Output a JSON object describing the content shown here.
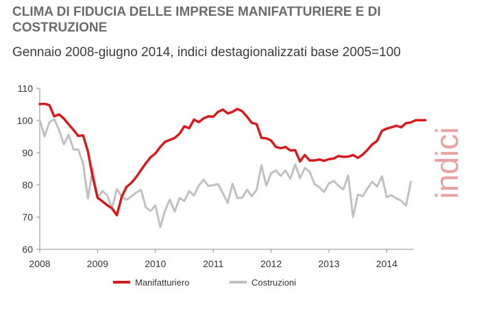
{
  "title": "CLIMA DI FIDUCIA DELLE IMPRESE MANIFATTURIERE E DI COSTRUZIONE",
  "subtitle": "Gennaio 2008-giugno 2014, indici destagionalizzati base 2005=100",
  "side_label": "indici",
  "colors": {
    "manifatturiero": "#d7191c",
    "costruzioni": "#c0c0c0",
    "axis": "#8c8c8c",
    "side_label": "#e8a0a0"
  },
  "chart_data": {
    "type": "line",
    "title": "CLIMA DI FIDUCIA DELLE IMPRESE MANIFATTURIERE E DI COSTRUZIONE",
    "subtitle": "Gennaio 2008-giugno 2014, indici destagionalizzati base 2005=100",
    "ylabel": "indici",
    "xlabel": "",
    "ylim": [
      60,
      110
    ],
    "yticks": [
      60,
      70,
      80,
      90,
      100,
      110
    ],
    "xticks": [
      "2008",
      "2009",
      "2010",
      "2011",
      "2012",
      "2013",
      "2014"
    ],
    "x_start": "2008-01",
    "frequency": "monthly",
    "legend_position": "bottom",
    "grid": false,
    "series": [
      {
        "name": "Manifatturiero",
        "values": [
          105.1,
          105.2,
          104.8,
          101.3,
          101.9,
          100.6,
          98.8,
          97.1,
          95.2,
          95.4,
          90.4,
          82.4,
          76.0,
          74.9,
          73.7,
          72.7,
          70.6,
          76.3,
          79.4,
          80.6,
          82.4,
          84.6,
          86.7,
          88.6,
          89.8,
          91.8,
          93.4,
          94.0,
          94.6,
          95.9,
          98.2,
          97.6,
          100.3,
          99.5,
          100.7,
          101.3,
          101.2,
          102.7,
          103.4,
          102.2,
          102.7,
          103.6,
          102.9,
          101.2,
          99.3,
          98.9,
          94.6,
          94.5,
          93.8,
          91.8,
          91.4,
          91.8,
          90.7,
          90.8,
          87.3,
          89.3,
          87.6,
          87.6,
          87.9,
          87.5,
          88.0,
          88.2,
          89.0,
          88.7,
          88.8,
          89.3,
          88.4,
          89.4,
          90.9,
          92.6,
          93.7,
          96.8,
          97.5,
          97.9,
          98.4,
          97.9,
          99.2,
          99.4,
          100.1,
          100.1,
          100.1
        ]
      },
      {
        "name": "Costruzioni",
        "values": [
          100.2,
          95.1,
          99.5,
          100.4,
          97.1,
          92.6,
          95.6,
          91.0,
          91.0,
          86.6,
          75.8,
          85.2,
          75.9,
          78.1,
          76.8,
          72.7,
          78.7,
          76.4,
          75.4,
          76.4,
          77.6,
          78.5,
          73.1,
          71.9,
          73.6,
          66.9,
          72.0,
          75.5,
          71.7,
          75.9,
          75.0,
          78.1,
          76.7,
          79.8,
          81.6,
          79.7,
          79.9,
          80.3,
          77.4,
          74.4,
          80.4,
          75.9,
          76.0,
          78.5,
          76.5,
          78.5,
          86.1,
          79.8,
          83.6,
          84.5,
          82.8,
          84.5,
          81.9,
          86.4,
          82.1,
          85.3,
          84.1,
          80.3,
          79.3,
          77.8,
          80.5,
          81.3,
          79.7,
          78.6,
          83.0,
          70.0,
          77.0,
          76.5,
          78.9,
          81.0,
          79.5,
          82.7,
          76.2,
          76.8,
          75.8,
          75.1,
          73.5,
          81.0
        ]
      }
    ]
  }
}
